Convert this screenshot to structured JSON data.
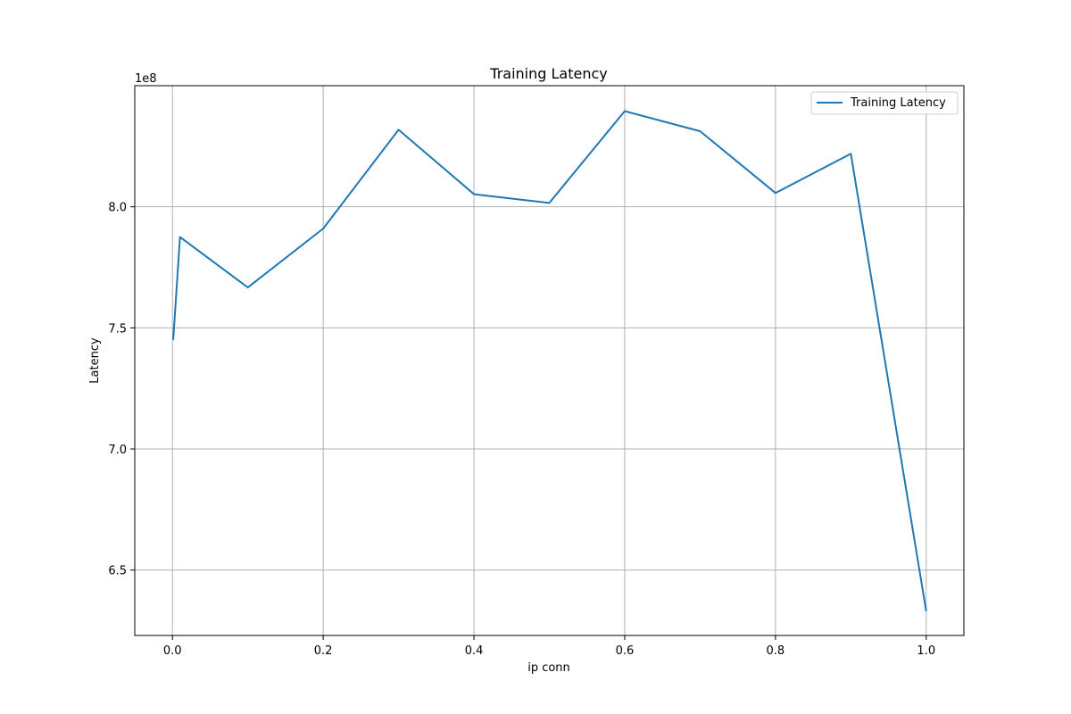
{
  "chart_data": {
    "type": "line",
    "title": "Training Latency",
    "xlabel": "ip conn",
    "ylabel": "Latency",
    "y_offset_label": "1e8",
    "y_scale_factor": 100000000,
    "xlim": [
      -0.05,
      1.05
    ],
    "ylim": [
      623000000,
      850000000
    ],
    "x_ticks": [
      0.0,
      0.2,
      0.4,
      0.6,
      0.8,
      1.0
    ],
    "x_tick_labels": [
      "0.0",
      "0.2",
      "0.4",
      "0.6",
      "0.8",
      "1.0"
    ],
    "y_ticks": [
      650000000,
      700000000,
      750000000,
      800000000
    ],
    "y_tick_labels": [
      "6.5",
      "7.0",
      "7.5",
      "8.0"
    ],
    "grid": true,
    "legend_position": "top-right",
    "series": [
      {
        "name": "Training Latency",
        "color": "#1f77b4",
        "x": [
          0.001,
          0.01,
          0.1,
          0.2,
          0.3,
          0.4,
          0.5,
          0.6,
          0.7,
          0.8,
          0.9,
          1.0
        ],
        "y": [
          745000000,
          787500000,
          766700000,
          791000000,
          831800000,
          805200000,
          801600000,
          839500000,
          831200000,
          805700000,
          821900000,
          633000000
        ]
      }
    ]
  }
}
